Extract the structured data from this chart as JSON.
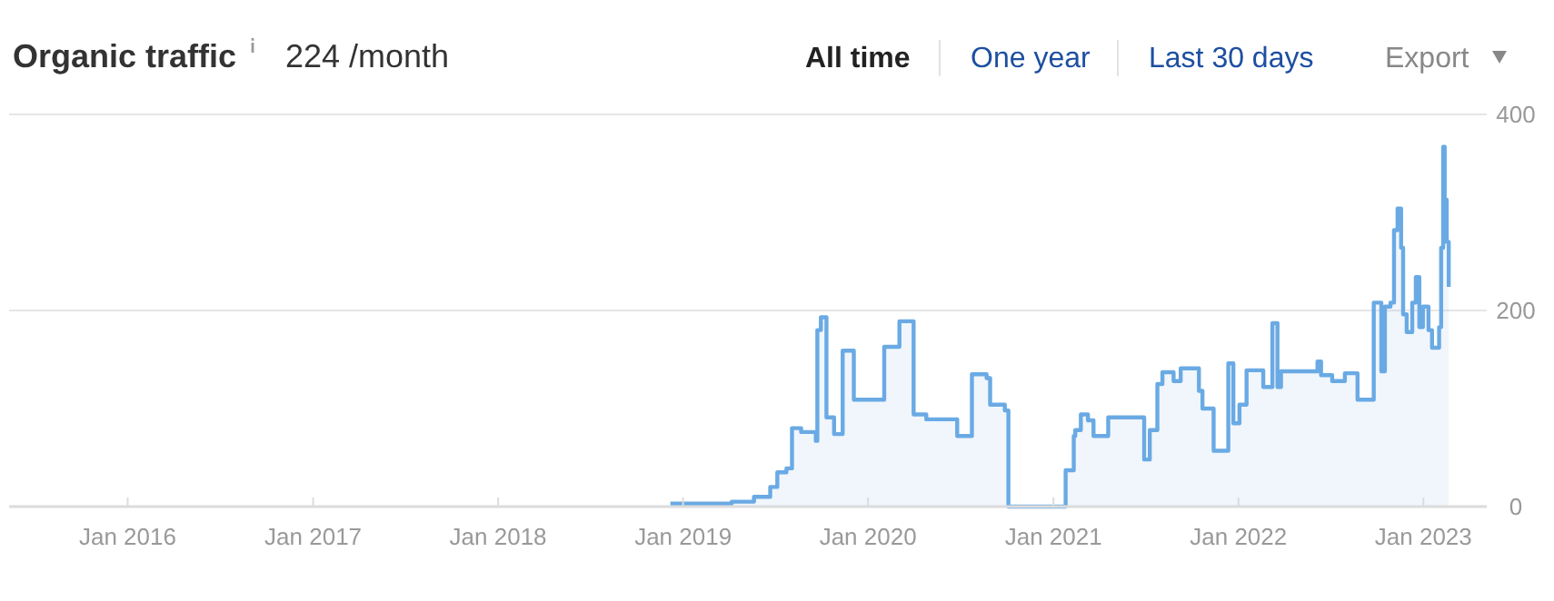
{
  "chart_data": {
    "type": "area",
    "title": "Organic traffic",
    "subtitle": "224 /month",
    "annotations": [
      "All time",
      "One year",
      "Last 30 days",
      "Export"
    ],
    "x": [
      "2018-12-07",
      "2019-04-07",
      "2019-05-21",
      "2019-06-22",
      "2019-07-06",
      "2019-07-24",
      "2019-08-04",
      "2019-08-22",
      "2019-09-20",
      "2019-09-23",
      "2019-09-30",
      "2019-10-11",
      "2019-10-26",
      "2019-11-12",
      "2019-12-04",
      "2020-02-02",
      "2020-03-03",
      "2020-03-31",
      "2020-04-25",
      "2020-06-25",
      "2020-07-24",
      "2020-08-22",
      "2020-08-29",
      "2020-09-27",
      "2020-10-04",
      "2021-01-25",
      "2021-02-10",
      "2021-02-13",
      "2021-02-24",
      "2021-03-10",
      "2021-03-21",
      "2021-04-19",
      "2021-06-29",
      "2021-07-10",
      "2021-07-25",
      "2021-08-04",
      "2021-08-26",
      "2021-09-09",
      "2021-10-15",
      "2021-10-22",
      "2021-11-13",
      "2021-12-12",
      "2021-12-22",
      "2022-01-03",
      "2022-01-17",
      "2022-02-19",
      "2022-03-09",
      "2022-03-19",
      "2022-03-26",
      "2022-06-06",
      "2022-06-13",
      "2022-07-05",
      "2022-07-30",
      "2022-08-24",
      "2022-09-25",
      "2022-10-10",
      "2022-10-17",
      "2022-10-28",
      "2022-11-04",
      "2022-11-11",
      "2022-11-18",
      "2022-11-22",
      "2022-11-29",
      "2022-12-10",
      "2022-12-17",
      "2022-12-24",
      "2022-12-31",
      "2023-01-11",
      "2023-01-18",
      "2023-02-01",
      "2023-02-05",
      "2023-02-09",
      "2023-02-12",
      "2023-02-16",
      "2023-02-20"
    ],
    "series": [
      {
        "color": "#6aaae4",
        "values": [
          3,
          5,
          10,
          20,
          35,
          39,
          80,
          76,
          67,
          180,
          193,
          91,
          74,
          159,
          109,
          163,
          189,
          94,
          89,
          72,
          135,
          131,
          104,
          98,
          0,
          37,
          72,
          78,
          94,
          88,
          72,
          91,
          48,
          78,
          125,
          137,
          128,
          141,
          118,
          100,
          57,
          146,
          85,
          104,
          139,
          122,
          187,
          122,
          138,
          148,
          134,
          128,
          136,
          109,
          208,
          138,
          204,
          208,
          282,
          304,
          264,
          196,
          178,
          208,
          234,
          183,
          204,
          180,
          162,
          183,
          264,
          367,
          313,
          270,
          224
        ]
      }
    ],
    "xlim": [
      "2015-05-12",
      "2023-05-06"
    ],
    "xticks": [
      {
        "value": "2016-01-01",
        "label": "Jan 2016"
      },
      {
        "value": "2017-01-01",
        "label": "Jan 2017"
      },
      {
        "value": "2018-01-01",
        "label": "Jan 2018"
      },
      {
        "value": "2019-01-01",
        "label": "Jan 2019"
      },
      {
        "value": "2020-01-01",
        "label": "Jan 2020"
      },
      {
        "value": "2021-01-01",
        "label": "Jan 2021"
      },
      {
        "value": "2022-01-01",
        "label": "Jan 2022"
      },
      {
        "value": "2023-01-01",
        "label": "Jan 2023"
      }
    ],
    "ylim": [
      0,
      400
    ],
    "yticks": [
      0,
      200,
      400
    ],
    "grid": "y"
  }
}
